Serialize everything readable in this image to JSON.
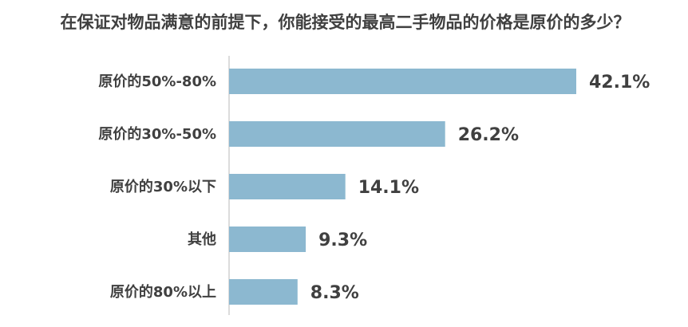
{
  "chart_data": {
    "type": "bar",
    "orientation": "horizontal",
    "title": "在保证对物品满意的前提下，你能接受的最高二手物品的价格是原价的多少？",
    "categories": [
      "原价的50%-80%",
      "原价的30%-50%",
      "原价的30%以下",
      "其他",
      "原价的80%以上"
    ],
    "values": [
      42.1,
      26.2,
      14.1,
      9.3,
      8.3
    ],
    "value_labels": [
      "42.1%",
      "26.2%",
      "14.1%",
      "9.3%",
      "8.3%"
    ],
    "xlabel": "",
    "ylabel": "",
    "xlim": [
      0,
      42.1
    ],
    "grid": false,
    "legend": "none",
    "bar_color": "#8cb8d0",
    "axis_color": "#d0d0d0",
    "text_color": "#404040"
  }
}
